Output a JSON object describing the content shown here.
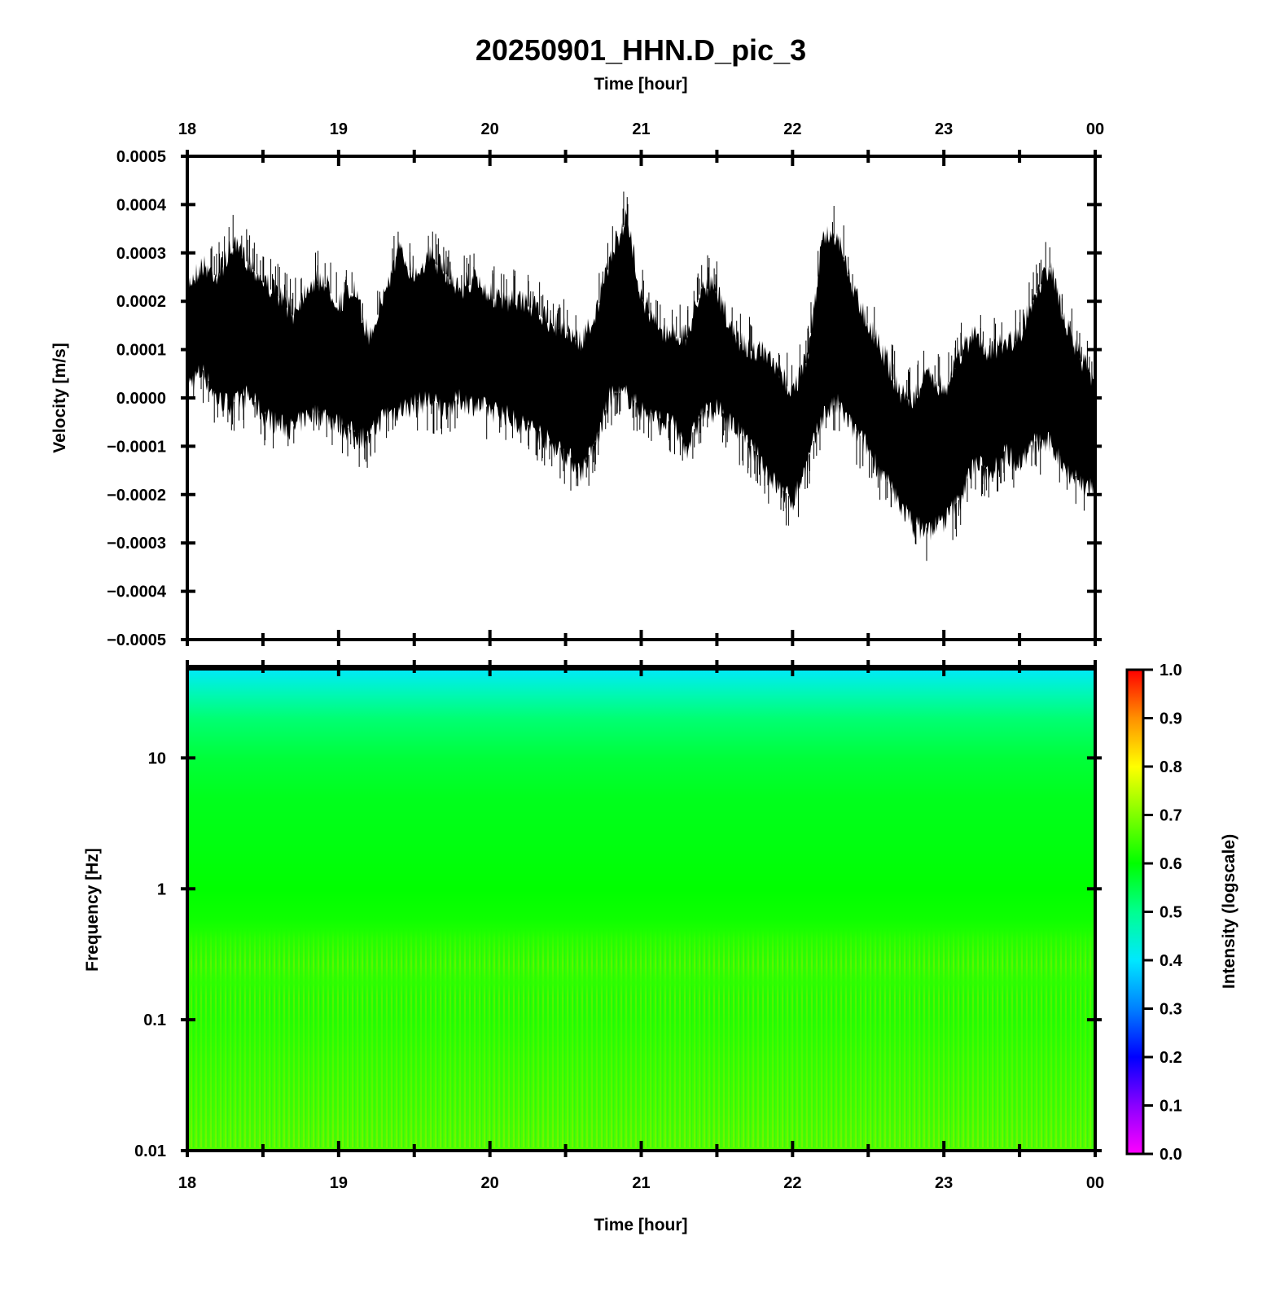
{
  "chart_data": [
    {
      "type": "line",
      "title": "20250901_HHN.D_pic_3",
      "xlabel": "Time [hour]",
      "ylabel": "Velocity [m/s]",
      "x_ticks": [
        "18",
        "19",
        "20",
        "21",
        "22",
        "23",
        "00"
      ],
      "xlim": [
        18,
        24
      ],
      "ylim": [
        -0.0005,
        0.0005
      ],
      "y_ticks": [
        "0.0005",
        "0.0004",
        "0.0003",
        "0.0002",
        "0.0001",
        "0.0000",
        "−0.0001",
        "−0.0002",
        "−0.0003",
        "−0.0004",
        "−0.0005"
      ],
      "y_tick_values": [
        0.0005,
        0.0004,
        0.0003,
        0.0002,
        0.0001,
        0.0,
        -0.0001,
        -0.0002,
        -0.0003,
        -0.0004,
        -0.0005
      ],
      "envelope": {
        "x": [
          18.0,
          18.1,
          18.2,
          18.3,
          18.4,
          18.5,
          18.6,
          18.7,
          18.8,
          18.9,
          19.0,
          19.1,
          19.2,
          19.3,
          19.4,
          19.5,
          19.6,
          19.7,
          19.8,
          19.9,
          20.0,
          20.1,
          20.2,
          20.3,
          20.4,
          20.5,
          20.6,
          20.7,
          20.8,
          20.9,
          21.0,
          21.1,
          21.2,
          21.3,
          21.4,
          21.5,
          21.6,
          21.7,
          21.8,
          21.9,
          22.0,
          22.1,
          22.2,
          22.3,
          22.4,
          22.5,
          22.6,
          22.7,
          22.8,
          22.9,
          23.0,
          23.1,
          23.2,
          23.3,
          23.4,
          23.5,
          23.6,
          23.7,
          23.8,
          23.9,
          24.0
        ],
        "upper": [
          0.00026,
          0.0003,
          0.00028,
          0.00034,
          0.00031,
          0.00027,
          0.00024,
          0.0002,
          0.00026,
          0.00027,
          0.00022,
          0.00025,
          0.00015,
          0.00024,
          0.00033,
          0.00028,
          0.00032,
          0.00029,
          0.00025,
          0.00027,
          0.00024,
          0.00022,
          0.00023,
          0.00021,
          0.00018,
          0.00017,
          0.00014,
          0.0002,
          0.00032,
          0.0004,
          0.00024,
          0.00017,
          0.00016,
          0.00015,
          0.00026,
          0.00025,
          0.00016,
          0.00013,
          0.00012,
          8e-05,
          4e-05,
          0.00011,
          0.00036,
          0.00036,
          0.00025,
          0.00018,
          0.00012,
          4e-05,
          2e-05,
          8e-05,
          4e-05,
          0.00011,
          0.00016,
          0.00012,
          0.00014,
          0.00015,
          0.00024,
          0.0003,
          0.00018,
          0.00011,
          6e-05
        ],
        "lower": [
          0.0,
          3e-05,
          -3e-05,
          -4e-05,
          -2e-05,
          -6e-05,
          -8e-05,
          -9e-05,
          -6e-05,
          -6e-05,
          -8e-05,
          -0.0001,
          -0.00011,
          -6e-05,
          -5e-05,
          -4e-05,
          -3e-05,
          -5e-05,
          -3e-05,
          -4e-05,
          -5e-05,
          -6e-05,
          -8e-05,
          -9e-05,
          -0.00012,
          -0.00014,
          -0.00018,
          -0.00012,
          -2e-05,
          -2e-05,
          -5e-05,
          -7e-05,
          -8e-05,
          -0.00013,
          -6e-05,
          -5e-05,
          -8e-05,
          -0.00012,
          -0.00016,
          -0.00021,
          -0.00024,
          -0.00016,
          -6e-05,
          -4e-05,
          -9e-05,
          -0.00013,
          -0.00019,
          -0.00024,
          -0.00029,
          -0.0003,
          -0.00028,
          -0.00024,
          -0.00016,
          -0.00018,
          -0.00014,
          -0.00016,
          -0.00012,
          -0.00012,
          -0.00017,
          -0.0002,
          -0.00022
        ]
      }
    },
    {
      "type": "heatmap",
      "xlabel": "Time [hour]",
      "ylabel": "Frequency [Hz]",
      "x_ticks": [
        "18",
        "19",
        "20",
        "21",
        "22",
        "23",
        "00"
      ],
      "xlim": [
        18,
        24
      ],
      "y_scale": "log",
      "ylim": [
        0.01,
        50
      ],
      "y_ticks": [
        "10",
        "1",
        "0.1",
        "0.01"
      ],
      "y_tick_values": [
        10,
        1,
        0.1,
        0.01
      ],
      "colorbar": {
        "label": "Intensity (logscale)",
        "ticks": [
          "0.0",
          "0.1",
          "0.2",
          "0.3",
          "0.4",
          "0.5",
          "0.6",
          "0.7",
          "0.8",
          "0.9",
          "1.0"
        ],
        "colors": [
          "#ff00ff",
          "#8a00ff",
          "#0000ff",
          "#0080ff",
          "#00e8ff",
          "#00ff90",
          "#00ff00",
          "#80ff00",
          "#ffff00",
          "#ff9000",
          "#ff0000"
        ]
      },
      "intensity_profile": {
        "frequency": [
          50,
          40,
          30,
          20,
          10,
          5,
          2,
          1,
          0.6,
          0.4,
          0.25,
          0.15,
          0.1,
          0.05,
          0.02,
          0.01
        ],
        "intensity": [
          0.4,
          0.43,
          0.47,
          0.52,
          0.56,
          0.58,
          0.59,
          0.6,
          0.61,
          0.63,
          0.64,
          0.63,
          0.63,
          0.64,
          0.65,
          0.66
        ]
      }
    }
  ]
}
